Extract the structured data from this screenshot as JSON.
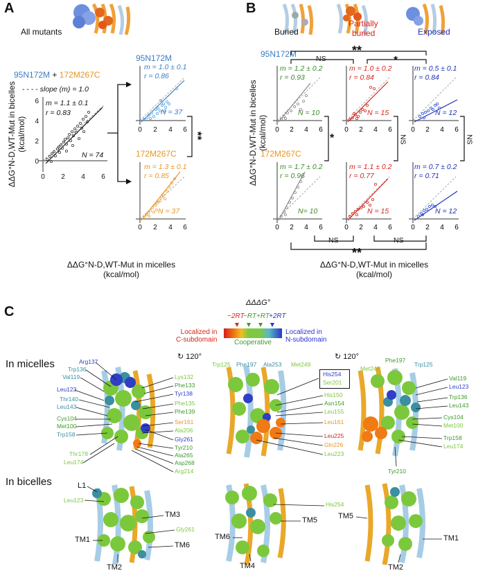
{
  "colors": {
    "blue": "#3b7cc4",
    "orange": "#e8951f",
    "gray": "#8a8a8a",
    "red": "#d9241b",
    "darkblue": "#1f2fb8",
    "green": "#3c9a28",
    "lightgreen": "#86c440"
  },
  "panelA": {
    "letter": "A",
    "all_mutants": "All mutants",
    "main_title_blue": "95N172M",
    "plus": "+",
    "main_title_orange": "172M267C",
    "slope_note": "slope (m) = 1.0",
    "main": {
      "m": "m = 1.1 ± 0.1",
      "r": "r = 0.83",
      "N": "N = 74"
    },
    "top": {
      "title": "95N172M",
      "m": "m = 1.0 ± 0.1",
      "r": "r = 0.86",
      "N": "N = 37"
    },
    "bottom": {
      "title": "172M267C",
      "m": "m = 1.3 ± 0.1",
      "r": "r = 0.85",
      "N": "N = 37"
    },
    "sig": "**",
    "ylabel_l1": "ΔΔG°N-D,WT-Mut in bicelles",
    "ylabel_l2": "(kcal/mol)",
    "xlabel_l1": "ΔΔG°N-D,WT-Mut in micelles",
    "xlabel_l2": "(kcal/mol)",
    "ticks_x": [
      "0",
      "2",
      "4",
      "6"
    ],
    "ticks_y": [
      "0",
      "2",
      "4",
      "6"
    ]
  },
  "panelB": {
    "letter": "B",
    "cat_buried": "Buried",
    "cat_partial_l1": "Partially",
    "cat_partial_l2": "buried",
    "cat_exposed": "Exposed",
    "row1_title": "95N172M",
    "row2_title": "172M267C",
    "row1": [
      {
        "m": "m = 1.2 ± 0.2",
        "r": "r = 0.93",
        "N": "N = 10"
      },
      {
        "m": "m = 1.0 ± 0.2",
        "r": "r = 0.84",
        "N": "N = 15"
      },
      {
        "m": "m = 0.5 ± 0.1",
        "r": "r = 0.84",
        "N": "N = 12"
      }
    ],
    "row2": [
      {
        "m": "m = 1.7 ± 0.2",
        "r": "r = 0.96",
        "N": "N= 10"
      },
      {
        "m": "m = 1.1 ± 0.2",
        "r": "r = 0.77",
        "N": "N = 15"
      },
      {
        "m": "m = 0.7 ± 0.2",
        "r": "r = 0.71",
        "N": "N = 12"
      }
    ],
    "sig_ns": "NS",
    "sig_dstar": "**",
    "sig_star": "*",
    "ylabel_l1": "ΔΔG°N-D,WT-Mut in bicelles",
    "ylabel_l2": "(kcal/mol)",
    "xlabel_l1": "ΔΔG°N-D,WT-Mut in micelles",
    "xlabel_l2": "(kcal/mol)"
  },
  "panelC": {
    "letter": "C",
    "colorbar_title": "ΔΔΔG°",
    "cb_ticks": [
      "−2RT",
      "−RT",
      "+RT",
      "+2RT"
    ],
    "left_label_l1": "Localized in",
    "left_label_l2": "C-subdomain",
    "center_label": "Cooperative",
    "right_label_l1": "Localized in",
    "right_label_l2": "N-subdomain",
    "rot1": "120°",
    "rot2": "120°",
    "in_micelles": "In micelles",
    "in_bicelles": "In bicelles",
    "m1_left": [
      "Arg137",
      "Trp136",
      "Val119",
      "Leu123",
      "Thr140",
      "Leu143",
      "Cys104",
      "Met100",
      "Trp158",
      "Thr178",
      "Leu174"
    ],
    "m1_right": [
      "Lys132",
      "Phe133",
      "Tyr138",
      "Phe135",
      "Phe139",
      "Ser161",
      "Ala206",
      "Gly261",
      "Tyr210",
      "Ala265",
      "Asp268",
      "Arg214"
    ],
    "m2_top": [
      "Trp125",
      "Phe197",
      "Ala253",
      "Met249"
    ],
    "m2_box": [
      "His254",
      "Ser201"
    ],
    "m2_right": [
      "His150",
      "Asn154",
      "Leu155",
      "Leu161",
      "Leu225",
      "Gln226",
      "Leu223"
    ],
    "m3_top": [
      "Met249",
      "Phe197",
      "Trp125"
    ],
    "m3_right": [
      "Val119",
      "Leu123",
      "Trp136",
      "Leu143",
      "Cys104",
      "Met100",
      "Trp158",
      "Leu174",
      "Tyr210"
    ],
    "b_labels": [
      "L1",
      "Leu123",
      "TM3",
      "Gly261",
      "TM1",
      "TM6",
      "TM2",
      "His254",
      "TM5",
      "TM6",
      "TM4",
      "TM5",
      "TM1",
      "TM2"
    ]
  }
}
